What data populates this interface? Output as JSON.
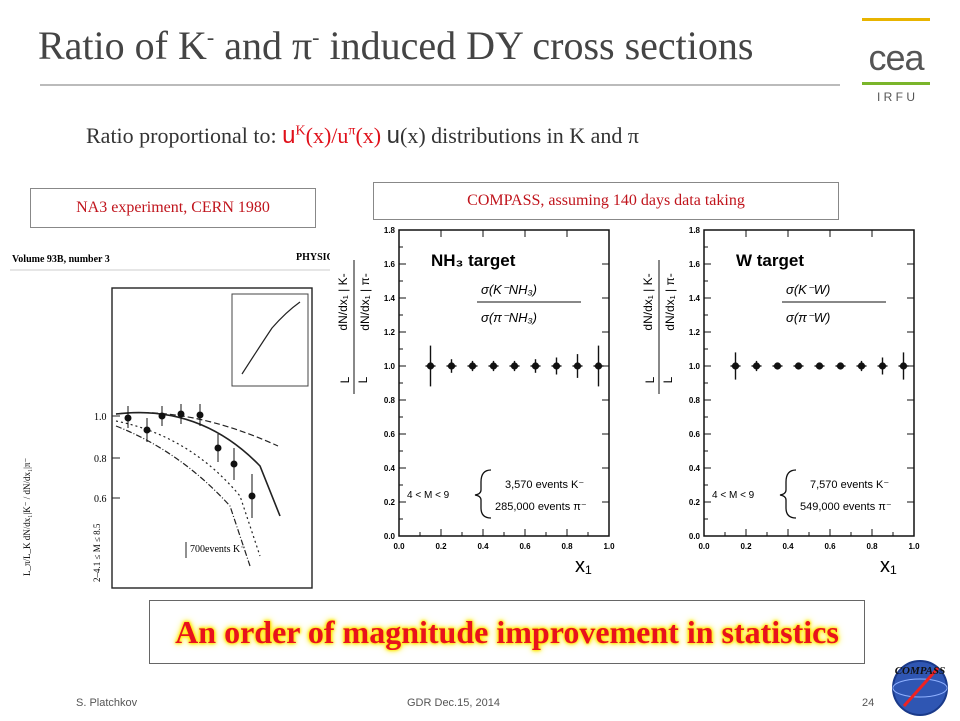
{
  "title": {
    "main": "Ratio of K",
    "sup1": "-",
    "mid": " and π",
    "sup2": "-",
    "end": " induced DY cross sections"
  },
  "subtitle": {
    "prefix": "Ratio proportional to: ",
    "formula_u1": "u",
    "formula_k": "K",
    "formula_x1": "(x)/u",
    "formula_pi": "π",
    "formula_x2": "(x)",
    "u": "u",
    "suffix": "(x) distributions in K and π"
  },
  "logo": {
    "text": "cea",
    "subtext": "I R F U"
  },
  "na3_label": "NA3 experiment, CERN 1980",
  "compass_label": "COMPASS, assuming 140 days data taking",
  "scan": {
    "header_left": "Volume 93B, number 3",
    "header_right": "PHYSIC",
    "events_label": "700events  K⁻",
    "range_label": "2–4.1 ≤ M ≤ 8.5",
    "yaxis": "L_π/L_K  dN/dx₁|K⁻ / dN/dx₁|π⁻",
    "yticks": [
      "1.0",
      "0.8",
      "0.6"
    ]
  },
  "plots": {
    "y_label_num": "dN/dx₁ | K-",
    "y_label_den": "dN/dx₁ | π-",
    "lumi_num": "L",
    "lumi_den": "L",
    "yticks": [
      "1.8",
      "1.6",
      "1.4",
      "1.2",
      "1.0",
      "0.8",
      "0.6",
      "0.4",
      "0.2",
      "0.0"
    ],
    "xticks": [
      "0.0",
      "0.2",
      "0.4",
      "0.6",
      "0.8",
      "1.0"
    ],
    "xlabel": "x₁",
    "mass_range": "4 < M < 9",
    "left": {
      "target": "NH₃ target",
      "ratio_num": "σ(K⁻NH₃)",
      "ratio_den": "σ(π⁻NH₃)",
      "events_k": "3,570 events K⁻",
      "events_pi": "285,000 events π⁻"
    },
    "right": {
      "target": "W target",
      "ratio_num": "σ(K⁻W)",
      "ratio_den": "σ(π⁻W)",
      "events_k": "7,570 events K⁻",
      "events_pi": "549,000 events π⁻"
    }
  },
  "chart_data": [
    {
      "type": "scatter",
      "title": "NH₃ target",
      "xlabel": "x₁",
      "xlim": [
        0.0,
        1.0
      ],
      "ylim": [
        0.0,
        1.8
      ],
      "series": [
        {
          "x": [
            0.15,
            0.25,
            0.35,
            0.45,
            0.55,
            0.65,
            0.75,
            0.85,
            0.95
          ],
          "y": [
            1.0,
            1.0,
            1.0,
            1.0,
            1.0,
            1.0,
            1.0,
            1.0,
            1.0
          ],
          "err": [
            0.12,
            0.04,
            0.03,
            0.03,
            0.03,
            0.04,
            0.05,
            0.07,
            0.12
          ]
        }
      ]
    },
    {
      "type": "scatter",
      "title": "W target",
      "xlabel": "x₁",
      "xlim": [
        0.0,
        1.0
      ],
      "ylim": [
        0.0,
        1.8
      ],
      "series": [
        {
          "x": [
            0.15,
            0.25,
            0.35,
            0.45,
            0.55,
            0.65,
            0.75,
            0.85,
            0.95
          ],
          "y": [
            1.0,
            1.0,
            1.0,
            1.0,
            1.0,
            1.0,
            1.0,
            1.0,
            1.0
          ],
          "err": [
            0.08,
            0.03,
            0.02,
            0.02,
            0.02,
            0.02,
            0.03,
            0.05,
            0.08
          ]
        }
      ]
    }
  ],
  "banner": "An order of magnitude  improvement  in statistics",
  "footer": {
    "author": "S. Platchkov",
    "event": "GDR Dec.15, 2014",
    "page": "24"
  },
  "compass_logo": "COMPASS",
  "colors": {
    "accent_red": "#e0101a",
    "cea_yellow": "#e8b400",
    "cea_green": "#7ab52a",
    "banner_glow": "#ffe800"
  }
}
